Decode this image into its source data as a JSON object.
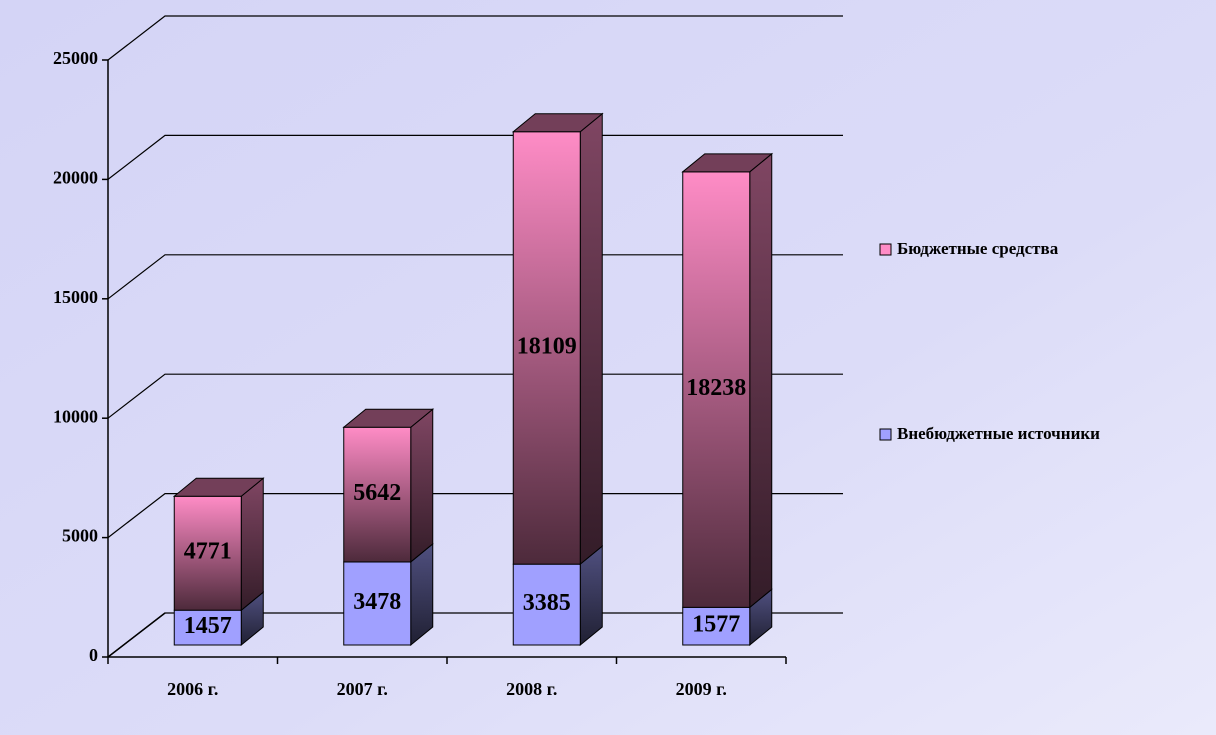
{
  "chart_data": {
    "type": "bar3d_stacked",
    "categories": [
      "2006 г.",
      "2007 г.",
      "2008 г.",
      "2009 г."
    ],
    "series": [
      {
        "name": "Внебюджетные источники",
        "color": "#a0a0ff",
        "values": [
          1457,
          3478,
          3385,
          1577
        ]
      },
      {
        "name": "Бюджетные средства",
        "color": "#ff8cc6",
        "values": [
          4771,
          5642,
          18109,
          18238
        ]
      }
    ],
    "ylim": [
      0,
      25000
    ],
    "yticks": [
      0,
      5000,
      10000,
      15000,
      20000,
      25000
    ],
    "grid": true,
    "legend": "right"
  }
}
